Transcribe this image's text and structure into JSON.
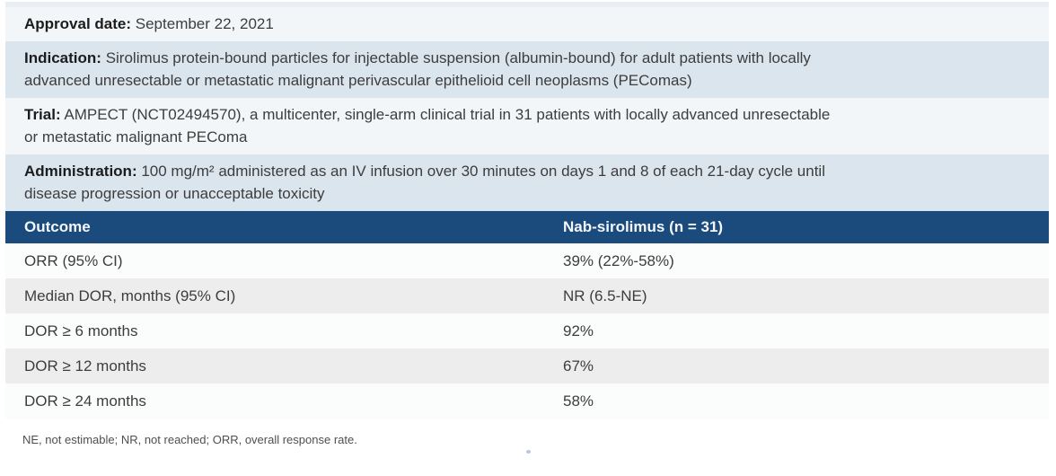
{
  "info_rows": [
    {
      "label": "Approval date:",
      "lines": [
        "September 22, 2021"
      ]
    },
    {
      "label": "Indication:",
      "lines": [
        "Sirolimus protein-bound particles for injectable suspension (albumin-bound) for adult patients with locally",
        "advanced unresectable or metastatic malignant perivascular epithelioid cell neoplasms (PEComas)"
      ]
    },
    {
      "label": "Trial:",
      "lines": [
        "AMPECT (NCT02494570), a multicenter, single-arm clinical trial in 31 patients with locally advanced unresectable",
        "or metastatic malignant PEComa"
      ]
    },
    {
      "label": "Administration:",
      "lines": [
        "100 mg/m² administered as an IV infusion over 30 minutes on days 1 and 8 of each 21-day cycle until",
        "disease progression or unacceptable toxicity"
      ]
    }
  ],
  "table": {
    "columns": [
      "Outcome",
      "Nab-sirolimus (n = 31)"
    ],
    "rows": [
      {
        "outcome": "ORR (95% CI)",
        "value": "39% (22%-58%)"
      },
      {
        "outcome": "Median DOR, months (95% CI)",
        "value": "NR (6.5-NE)"
      },
      {
        "outcome": "DOR ≥ 6 months",
        "value": "92%"
      },
      {
        "outcome": "DOR ≥ 12 months",
        "value": "67%"
      },
      {
        "outcome": "DOR ≥ 24 months",
        "value": "58%"
      }
    ]
  },
  "footnote": "NE, not estimable; NR, not reached; ORR, overall response rate.",
  "colors": {
    "header_bg": "#1b4a7c",
    "blue_row_bg": "#dbe5ee",
    "light_row_bg": "#f3f6f8",
    "zebra_gray_bg": "#ededed",
    "zebra_white_bg": "#fbfcfc",
    "top_border": "#e9eef4"
  }
}
